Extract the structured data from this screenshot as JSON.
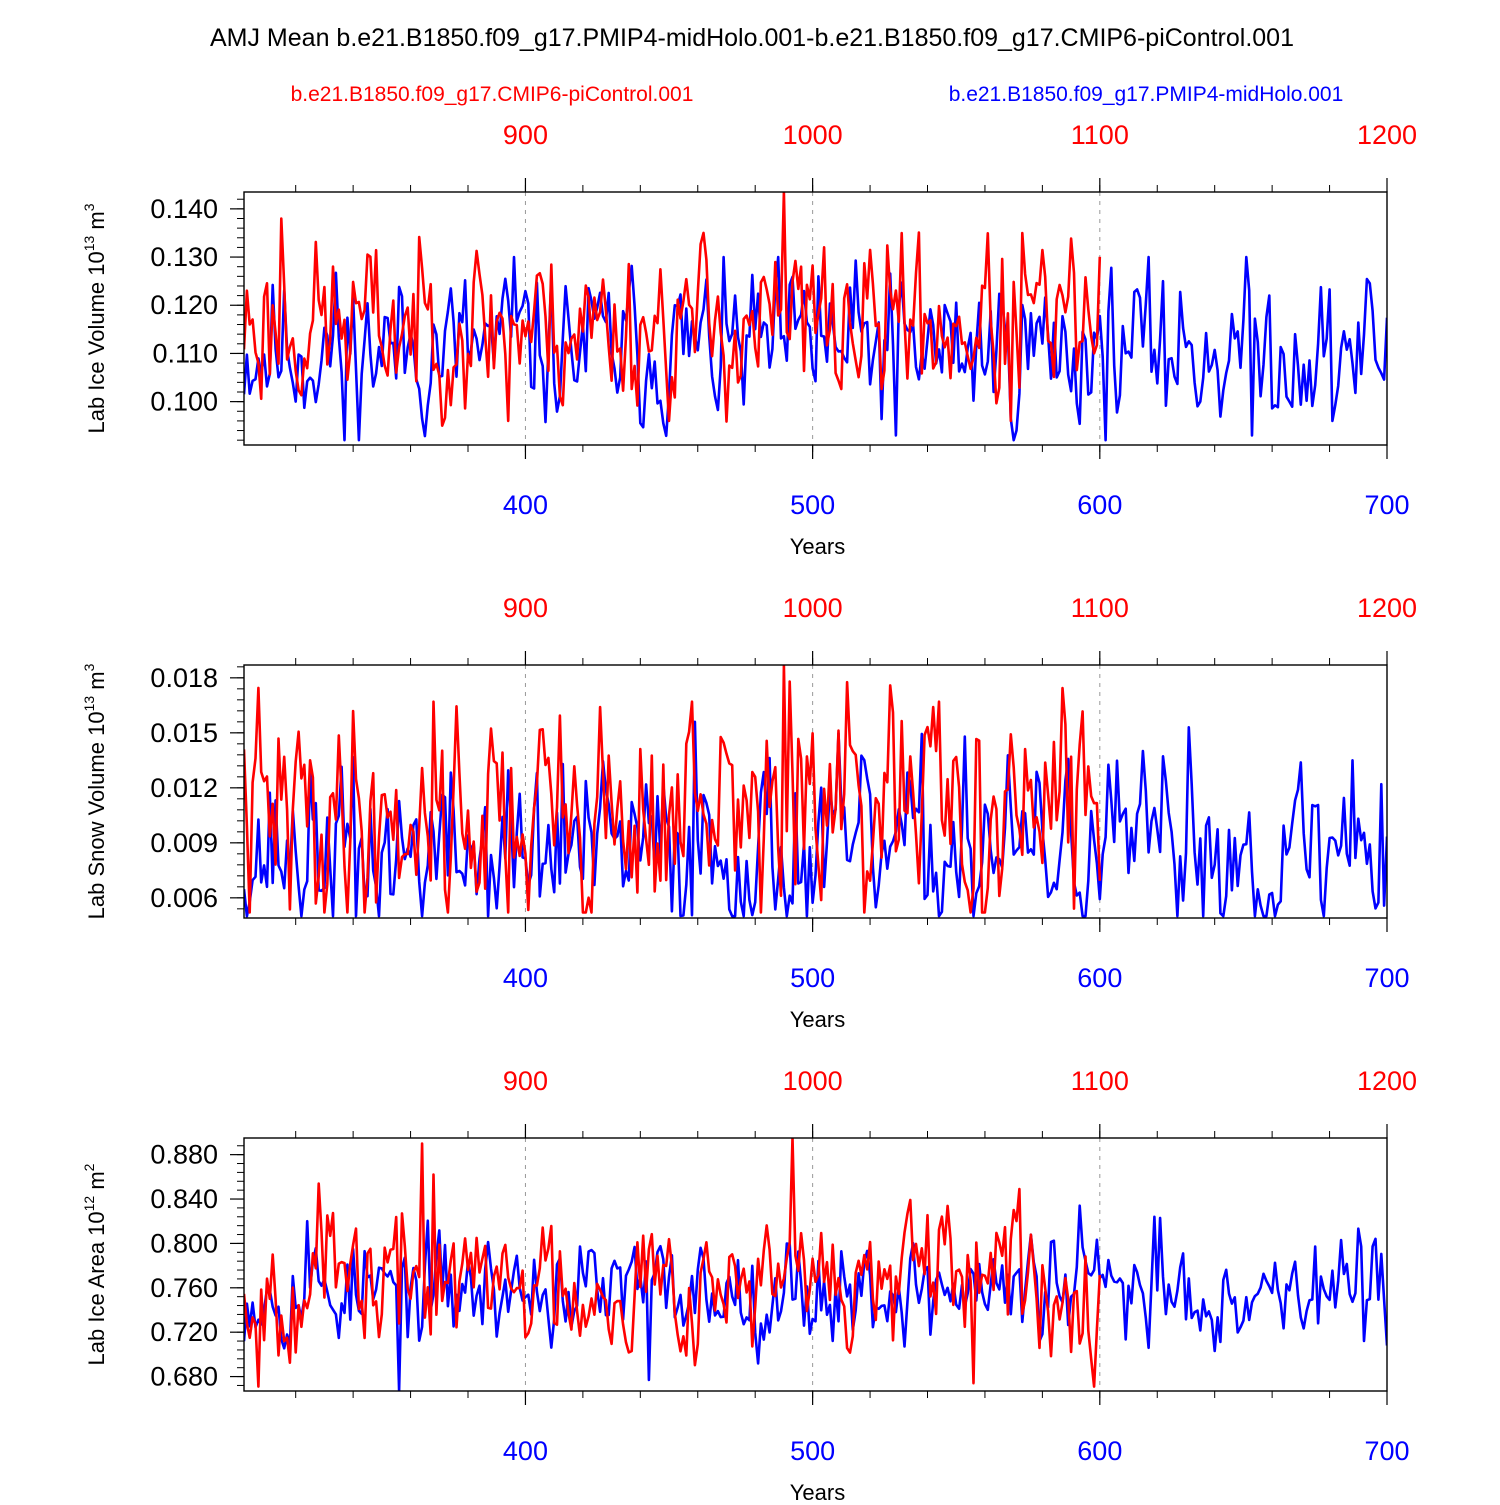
{
  "title": "AMJ Mean b.e21.B1850.f09_g17.PMIP4-midHolo.001-b.e21.B1850.f09_g17.CMIP6-piControl.001",
  "legend": {
    "control_name": "b.e21.B1850.f09_g17.CMIP6-piControl.001",
    "midholo_name": "b.e21.B1850.f09_g17.PMIP4-midHolo.001"
  },
  "colors": {
    "control": "#ff0000",
    "midholo": "#0000ff",
    "axis": "#000000",
    "grid": "#999999"
  },
  "chart_data": [
    {
      "type": "line",
      "ylabel_main": "Lab Ice Volume 10",
      "ylabel_exp": "13",
      "ylabel_unit": " m",
      "ylabel_unit_exp": "3",
      "ylim": [
        0.091,
        0.1435
      ],
      "yticks": [
        0.1,
        0.11,
        0.12,
        0.13,
        0.14
      ],
      "ytick_labels": [
        "0.100",
        "0.110",
        "0.120",
        "0.130",
        "0.140"
      ],
      "yminor_step": 0.002,
      "xlabel": "Years",
      "x_bottom": {
        "range": [
          302,
          700
        ],
        "ticks": [
          400,
          500,
          600,
          700
        ],
        "labels": [
          "400",
          "500",
          "600",
          "700"
        ]
      },
      "x_top": {
        "range": [
          802,
          1200
        ],
        "ticks": [
          900,
          1000,
          1100,
          1200
        ],
        "labels": [
          "900",
          "1000",
          "1100",
          "1200"
        ]
      },
      "dashed_at": [
        400,
        500,
        600
      ],
      "series": [
        {
          "name": "b.e21.B1850.f09_g17.PMIP4-midHolo.001",
          "color": "#0000ff",
          "x_start": 302,
          "x_step": 1,
          "base": 0.111,
          "amp": 0.0075,
          "min": 0.092,
          "max": 0.13,
          "seed": 11,
          "specials": [
            [
              337,
              0.092
            ],
            [
              396,
              0.13
            ],
            [
              502,
              0.126
            ],
            [
              529,
              0.093
            ],
            [
              571,
              0.094
            ],
            [
              622,
              0.125
            ],
            [
              651,
              0.13
            ],
            [
              653,
              0.093
            ],
            [
              681,
              0.096
            ]
          ]
        },
        {
          "name": "b.e21.B1850.f09_g17.CMIP6-piControl.001",
          "color": "#ff0000",
          "x_start": 302,
          "x_step": 1,
          "x_end": 600,
          "base": 0.116,
          "amp": 0.008,
          "min": 0.095,
          "max": 0.1435,
          "seed": 23,
          "specials": [
            [
              304,
              0.116
            ],
            [
              315,
              0.138
            ],
            [
              394,
              0.096
            ],
            [
              490,
              0.1435
            ],
            [
              496,
              0.128
            ],
            [
              531,
              0.135
            ],
            [
              569,
              0.096
            ],
            [
              573,
              0.135
            ]
          ]
        }
      ]
    },
    {
      "type": "line",
      "ylabel_main": "Lab Snow Volume 10",
      "ylabel_exp": "13",
      "ylabel_unit": " m",
      "ylabel_unit_exp": "3",
      "ylim": [
        0.0049,
        0.0187
      ],
      "yticks": [
        0.006,
        0.009,
        0.012,
        0.015,
        0.018
      ],
      "ytick_labels": [
        "0.006",
        "0.009",
        "0.012",
        "0.015",
        "0.018"
      ],
      "yminor_step": 0.0006,
      "xlabel": "Years",
      "x_bottom": {
        "range": [
          302,
          700
        ],
        "ticks": [
          400,
          500,
          600,
          700
        ],
        "labels": [
          "400",
          "500",
          "600",
          "700"
        ]
      },
      "x_top": {
        "range": [
          802,
          1200
        ],
        "ticks": [
          900,
          1000,
          1100,
          1200
        ],
        "labels": [
          "900",
          "1000",
          "1100",
          "1200"
        ]
      },
      "dashed_at": [
        400,
        500,
        600
      ],
      "series": [
        {
          "name": "b.e21.B1850.f09_g17.PMIP4-midHolo.001",
          "color": "#0000ff",
          "x_start": 302,
          "x_step": 1,
          "base": 0.0085,
          "amp": 0.0022,
          "min": 0.005,
          "max": 0.0156,
          "seed": 37,
          "specials": [
            [
              341,
              0.005
            ],
            [
              413,
              0.0133
            ],
            [
              459,
              0.0156
            ],
            [
              498,
              0.005
            ],
            [
              553,
              0.0148
            ],
            [
              631,
              0.0153
            ],
            [
              688,
              0.0135
            ],
            [
              698,
              0.0122
            ]
          ]
        },
        {
          "name": "b.e21.B1850.f09_g17.CMIP6-piControl.001",
          "color": "#ff0000",
          "x_start": 302,
          "x_step": 1,
          "x_end": 600,
          "base": 0.0105,
          "amp": 0.0028,
          "min": 0.0052,
          "max": 0.0187,
          "seed": 41,
          "specials": [
            [
              420,
              0.0052
            ],
            [
              490,
              0.0187
            ],
            [
              492,
              0.0178
            ],
            [
              458,
              0.0167
            ],
            [
              368,
              0.0167
            ],
            [
              544,
              0.0167
            ]
          ]
        }
      ]
    },
    {
      "type": "line",
      "ylabel_main": "Lab Ice Area 10",
      "ylabel_exp": "12",
      "ylabel_unit": " m",
      "ylabel_unit_exp": "2",
      "ylim": [
        0.667,
        0.895
      ],
      "yticks": [
        0.68,
        0.72,
        0.76,
        0.8,
        0.84,
        0.88
      ],
      "ytick_labels": [
        "0.680",
        "0.720",
        "0.760",
        "0.800",
        "0.840",
        "0.880"
      ],
      "yminor_step": 0.008,
      "xlabel": "Years",
      "x_bottom": {
        "range": [
          302,
          700
        ],
        "ticks": [
          400,
          500,
          600,
          700
        ],
        "labels": [
          "400",
          "500",
          "600",
          "700"
        ]
      },
      "x_top": {
        "range": [
          802,
          1200
        ],
        "ticks": [
          900,
          1000,
          1100,
          1200
        ],
        "labels": [
          "900",
          "1000",
          "1100",
          "1200"
        ]
      },
      "dashed_at": [
        400,
        500,
        600
      ],
      "series": [
        {
          "name": "b.e21.B1850.f09_g17.PMIP4-midHolo.001",
          "color": "#0000ff",
          "x_start": 302,
          "x_step": 1,
          "base": 0.758,
          "amp": 0.022,
          "min": 0.667,
          "max": 0.834,
          "seed": 53,
          "specials": [
            [
              356,
              0.667
            ],
            [
              324,
              0.82
            ],
            [
              443,
              0.677
            ],
            [
              593,
              0.834
            ],
            [
              619,
              0.824
            ],
            [
              621,
              0.823
            ],
            [
              700,
              0.708
            ]
          ]
        },
        {
          "name": "b.e21.B1850.f09_g17.CMIP6-piControl.001",
          "color": "#ff0000",
          "x_start": 302,
          "x_step": 1,
          "x_end": 600,
          "base": 0.765,
          "amp": 0.028,
          "min": 0.671,
          "max": 0.895,
          "seed": 67,
          "specials": [
            [
              307,
              0.671
            ],
            [
              364,
              0.89
            ],
            [
              368,
              0.862
            ],
            [
              493,
              0.895
            ],
            [
              556,
              0.674
            ],
            [
              572,
              0.849
            ],
            [
              328,
              0.854
            ]
          ]
        }
      ]
    }
  ]
}
